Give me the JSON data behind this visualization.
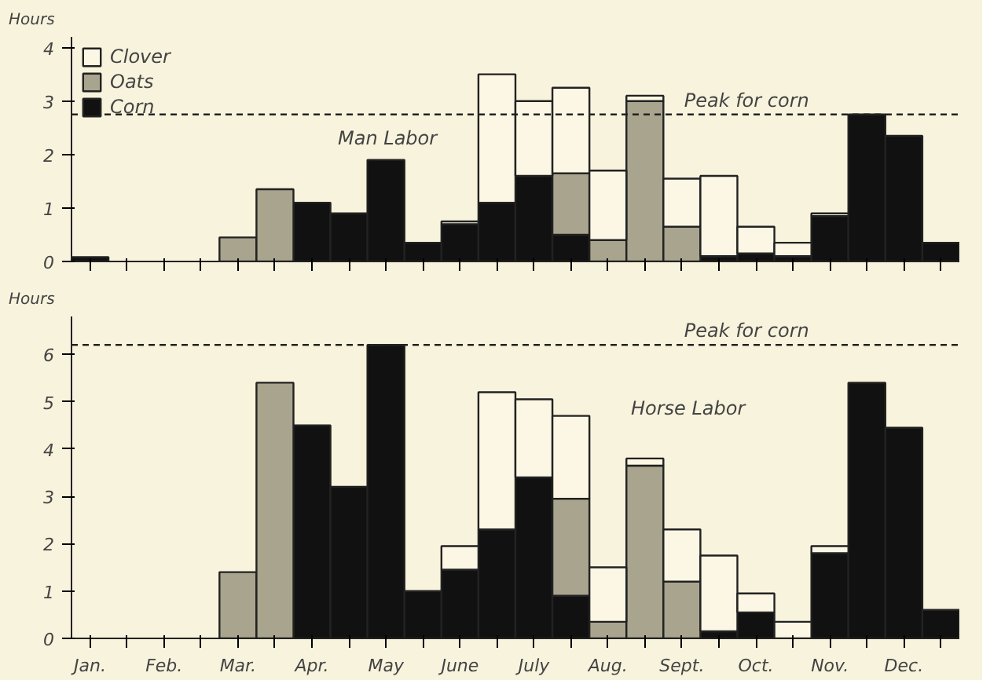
{
  "chart_data": [
    {
      "type": "bar",
      "title": "Man Labor",
      "ylabel": "Hours",
      "stacked": true,
      "legend": "top left",
      "grid": false,
      "tick_labels": "y",
      "categories": [
        null,
        null,
        null,
        null,
        null,
        null,
        null,
        null,
        null,
        null,
        null,
        null,
        null,
        null,
        null,
        null,
        null,
        null,
        null,
        null,
        null,
        null,
        null,
        null
      ],
      "ylim": [
        0,
        4.2
      ],
      "yticks": [
        0,
        1,
        2,
        3,
        4
      ],
      "series": [
        {
          "name": "Corn",
          "color": "#111111",
          "values": [
            0.08,
            null,
            null,
            null,
            null,
            null,
            1.1,
            0.9,
            1.9,
            0.35,
            0.7,
            1.1,
            1.6,
            0.5,
            null,
            null,
            null,
            0.1,
            0.15,
            0.1,
            0.85,
            2.75,
            2.35,
            0.35
          ]
        },
        {
          "name": "Oats",
          "color": "#a9a48e",
          "values": [
            null,
            null,
            null,
            null,
            0.45,
            1.35,
            null,
            null,
            null,
            null,
            null,
            null,
            null,
            1.15,
            0.4,
            3.0,
            0.65,
            null,
            null,
            null,
            null,
            null,
            null,
            null
          ]
        },
        {
          "name": "Clover",
          "color": "#fbf7e4",
          "values": [
            null,
            null,
            null,
            null,
            null,
            null,
            null,
            null,
            null,
            null,
            0.05,
            2.4,
            1.4,
            1.6,
            1.3,
            0.1,
            0.9,
            1.5,
            0.5,
            0.25,
            0.05,
            null,
            null,
            null
          ]
        }
      ],
      "ref_lines": [
        {
          "axis": "y",
          "value": 2.75,
          "label": "Peak for corn",
          "line_style": "dashed"
        }
      ]
    },
    {
      "type": "bar",
      "title": "Horse Labor",
      "ylabel": "Hours",
      "stacked": true,
      "legend": false,
      "grid": false,
      "categories": [
        "Jan.",
        null,
        "Feb.",
        null,
        "Mar.",
        null,
        "Apr.",
        null,
        "May",
        null,
        "June",
        null,
        "July",
        null,
        "Aug.",
        null,
        "Sept.",
        null,
        "Oct.",
        null,
        "Nov.",
        null,
        "Dec.",
        null
      ],
      "ylim": [
        0,
        6.8
      ],
      "yticks": [
        0,
        1,
        2,
        3,
        4,
        5,
        6
      ],
      "series": [
        {
          "color": "#111111",
          "values": [
            null,
            null,
            null,
            null,
            null,
            null,
            4.5,
            3.2,
            6.2,
            1.0,
            1.45,
            2.3,
            3.4,
            0.9,
            null,
            null,
            null,
            0.15,
            0.55,
            null,
            1.8,
            5.4,
            4.45,
            0.6
          ]
        },
        {
          "color": "#a9a48e",
          "values": [
            null,
            null,
            null,
            null,
            1.4,
            5.4,
            null,
            null,
            null,
            null,
            null,
            null,
            null,
            2.05,
            0.35,
            3.65,
            1.2,
            null,
            null,
            null,
            null,
            null,
            null,
            null
          ]
        },
        {
          "color": "#fbf7e4",
          "values": [
            null,
            null,
            null,
            null,
            null,
            null,
            null,
            null,
            null,
            null,
            0.5,
            2.9,
            1.65,
            1.75,
            1.15,
            0.15,
            1.1,
            1.6,
            0.4,
            0.35,
            0.15,
            null,
            null,
            null
          ]
        }
      ],
      "ref_lines": [
        {
          "axis": "y",
          "value": 6.2,
          "label": "Peak for corn",
          "line_style": "dashed"
        }
      ]
    }
  ]
}
